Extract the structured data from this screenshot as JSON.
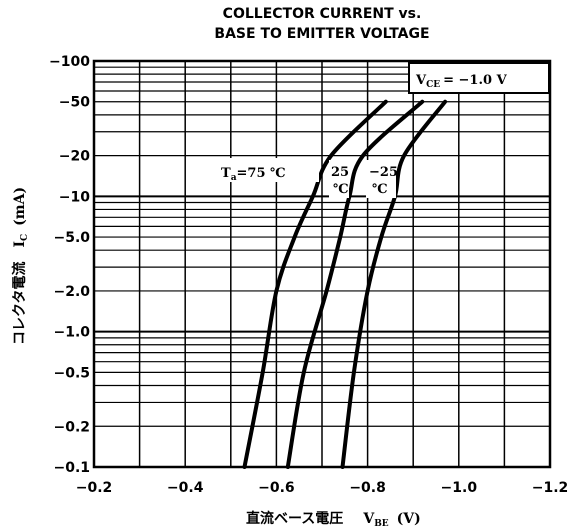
{
  "chart_data": {
    "type": "line",
    "title": "COLLECTOR CURRENT vs.",
    "subtitle": "BASE TO EMITTER VOLTAGE",
    "xlabel": "直流ベース電圧",
    "xlabel_symbol": "V",
    "xlabel_subscript": "BE",
    "xlabel_unit": "(V)",
    "ylabel": "コレクタ電流",
    "ylabel_symbol": "I",
    "ylabel_subscript": "C",
    "ylabel_unit": "(mA)",
    "x_axis": "linear, decreasing to the right",
    "y_axis": "log",
    "xlim": [
      -0.2,
      -1.2
    ],
    "ylim": [
      -0.1,
      -100
    ],
    "grid": true,
    "x_ticks": [
      -0.2,
      -0.4,
      -0.6,
      -0.8,
      -1.0,
      -1.2
    ],
    "x_tick_labels": [
      "−0.2",
      "−0.4",
      "−0.6",
      "−0.8",
      "−1.0",
      "−1.2"
    ],
    "y_ticks": [
      -100,
      -50,
      -20,
      -10,
      -5,
      -2,
      -1,
      -0.5,
      -0.2,
      -0.1
    ],
    "y_tick_labels": [
      "−100",
      "−50",
      "−20",
      "−10",
      "−5.0",
      "−2.0",
      "−1.0",
      "−0.5",
      "−0.2",
      "−0.1"
    ],
    "condition": {
      "symbol": "V",
      "subscript": "CE",
      "text": "= −1.0 V"
    },
    "series": [
      {
        "name": "T",
        "name_subscript": "a",
        "name_text": "=75 ℃",
        "x": [
          -0.53,
          -0.57,
          -0.6,
          -0.64,
          -0.68,
          -0.72,
          -0.84
        ],
        "y": [
          -0.1,
          -0.5,
          -2.0,
          -5.0,
          -10,
          -20,
          -50
        ]
      },
      {
        "name": "25",
        "name_unit": "℃",
        "x": [
          -0.625,
          -0.66,
          -0.71,
          -0.74,
          -0.76,
          -0.79,
          -0.92
        ],
        "y": [
          -0.1,
          -0.5,
          -2.0,
          -5.0,
          -10,
          -20,
          -50
        ]
      },
      {
        "name": "−25",
        "name_unit": "℃",
        "x": [
          -0.745,
          -0.77,
          -0.8,
          -0.83,
          -0.86,
          -0.88,
          -0.97
        ],
        "y": [
          -0.1,
          -0.5,
          -2.0,
          -5.0,
          -10,
          -20,
          -50
        ]
      }
    ]
  }
}
